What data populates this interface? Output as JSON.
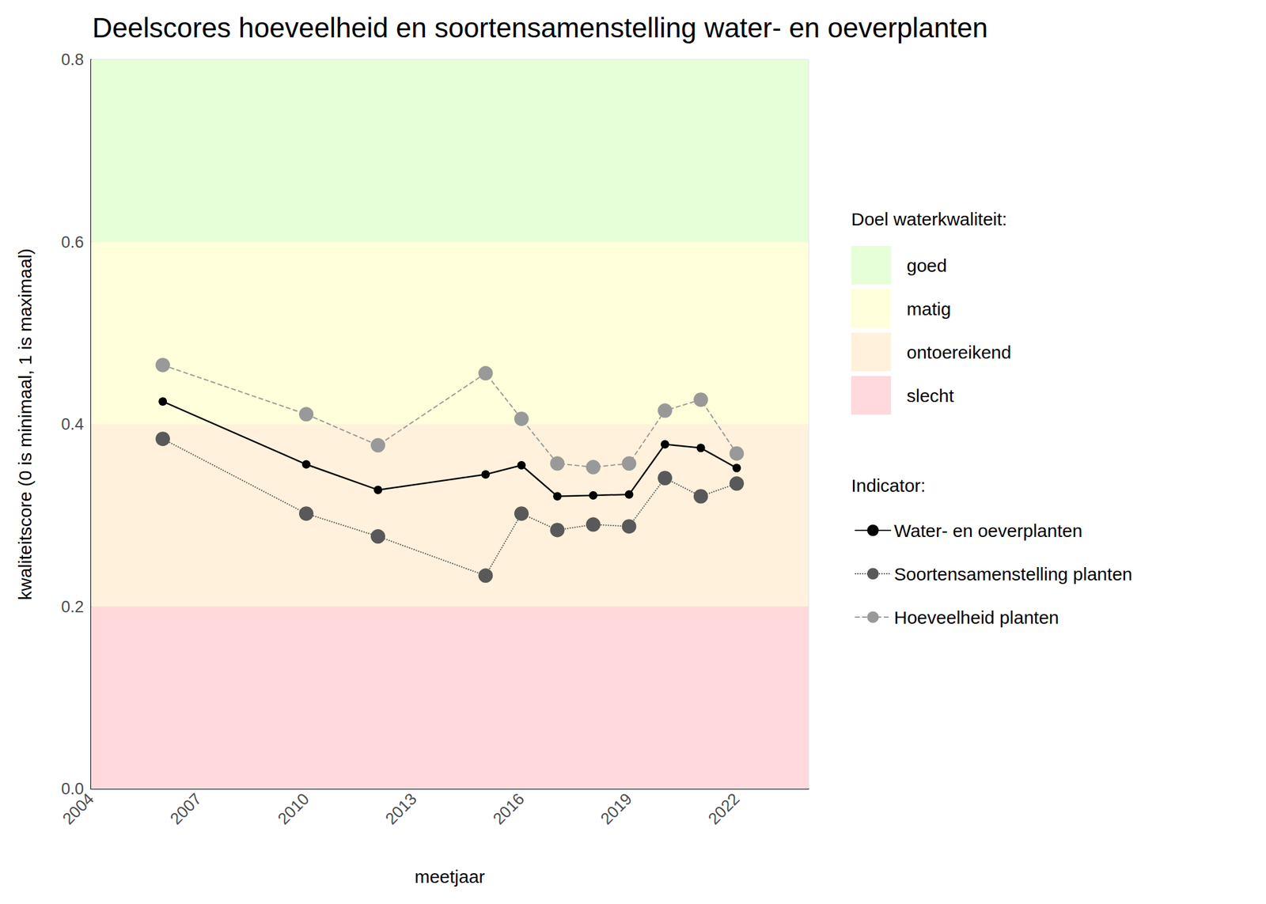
{
  "chart_data": {
    "type": "line",
    "title": "Deelscores hoeveelheid en soortensamenstelling water- en oeverplanten",
    "x_label": "meetjaar",
    "y_label": "kwaliteitscore (0 is minimaal, 1 is maximaal)",
    "x": [
      2006,
      2010,
      2012,
      2015,
      2016,
      2017,
      2018,
      2019,
      2020,
      2021,
      2022
    ],
    "series": [
      {
        "name": "Water- en oeverplanten",
        "color": "#000000",
        "marker": "circle",
        "line_style": "solid",
        "values": [
          0.425,
          0.356,
          0.328,
          0.345,
          0.355,
          0.321,
          0.322,
          0.323,
          0.378,
          0.374,
          0.352
        ]
      },
      {
        "name": "Soortensamenstelling planten",
        "color": "#595959",
        "marker": "circle",
        "line_style": "dotted",
        "values": [
          0.384,
          0.302,
          0.277,
          0.234,
          0.302,
          0.284,
          0.29,
          0.288,
          0.341,
          0.321,
          0.335
        ]
      },
      {
        "name": "Hoeveelheid planten",
        "color": "#999999",
        "marker": "circle",
        "line_style": "dashed",
        "values": [
          0.465,
          0.411,
          0.377,
          0.456,
          0.406,
          0.357,
          0.353,
          0.357,
          0.415,
          0.427,
          0.368
        ]
      }
    ],
    "legend_title": "Indicator:",
    "bands_title": "Doel waterkwaliteit:",
    "bands": [
      {
        "name": "goed",
        "color": "#e6ffd9",
        "from": 0.6,
        "to": 0.8
      },
      {
        "name": "matig",
        "color": "#ffffdb",
        "from": 0.4,
        "to": 0.6
      },
      {
        "name": "ontoereikend",
        "color": "#fff1db",
        "from": 0.2,
        "to": 0.4
      },
      {
        "name": "slecht",
        "color": "#ffd9dc",
        "from": 0.0,
        "to": 0.2
      }
    ],
    "xlim": [
      2004,
      2024
    ],
    "xticks": [
      2004,
      2007,
      2010,
      2013,
      2016,
      2019,
      2022
    ],
    "ylim": [
      0,
      0.8
    ],
    "yticks": [
      {
        "value": 0,
        "label": "0.0"
      },
      {
        "value": 0.2,
        "label": "0.2"
      },
      {
        "value": 0.4,
        "label": "0.4"
      },
      {
        "value": 0.6,
        "label": "0.6"
      },
      {
        "value": 0.8,
        "label": "0.8"
      }
    ],
    "grid": true,
    "legend": "right"
  }
}
